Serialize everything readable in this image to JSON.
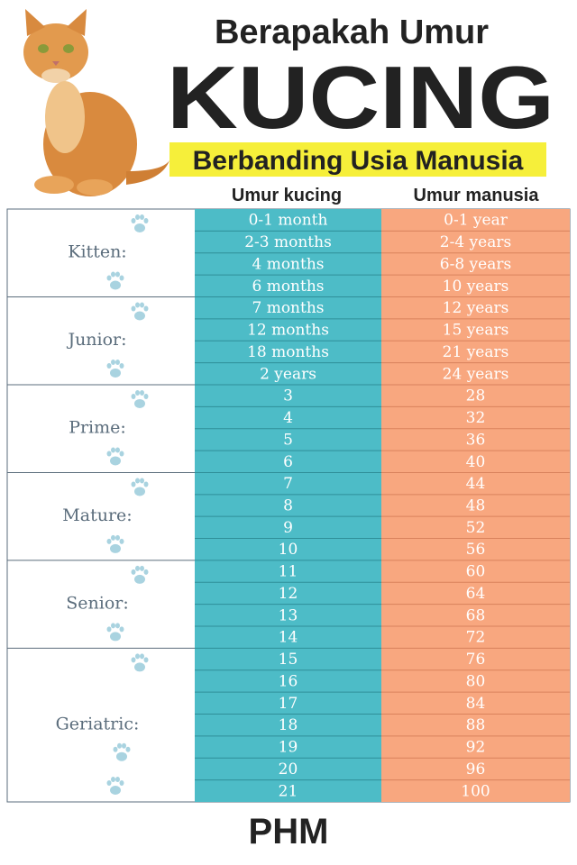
{
  "header": {
    "title": "Berapakah Umur",
    "main": "KUCING",
    "subtitle": "Berbanding Usia Manusia"
  },
  "table": {
    "columns": [
      "Umur kucing",
      "Umur manusia"
    ],
    "groups": [
      {
        "label": "Kitten:",
        "rows": [
          [
            "0-1 month",
            "0-1 year"
          ],
          [
            "2-3 months",
            "2-4 years"
          ],
          [
            "4 months",
            "6-8 years"
          ],
          [
            "6 months",
            "10 years"
          ]
        ]
      },
      {
        "label": "Junior:",
        "rows": [
          [
            "7 months",
            "12 years"
          ],
          [
            "12 months",
            "15 years"
          ],
          [
            "18 months",
            "21 years"
          ],
          [
            "2 years",
            "24 years"
          ]
        ]
      },
      {
        "label": "Prime:",
        "rows": [
          [
            3,
            28
          ],
          [
            4,
            32
          ],
          [
            5,
            36
          ],
          [
            6,
            40
          ]
        ]
      },
      {
        "label": "Mature:",
        "rows": [
          [
            7,
            44
          ],
          [
            8,
            48
          ],
          [
            9,
            52
          ],
          [
            10,
            56
          ]
        ]
      },
      {
        "label": "Senior:",
        "rows": [
          [
            11,
            60
          ],
          [
            12,
            64
          ],
          [
            13,
            68
          ],
          [
            14,
            72
          ]
        ]
      },
      {
        "label": "Geriatric:",
        "rows": [
          [
            15,
            76
          ],
          [
            16,
            80
          ],
          [
            17,
            84
          ],
          [
            18,
            88
          ],
          [
            19,
            92
          ],
          [
            20,
            96
          ],
          [
            21,
            100
          ]
        ]
      }
    ]
  },
  "footer": "PHM"
}
